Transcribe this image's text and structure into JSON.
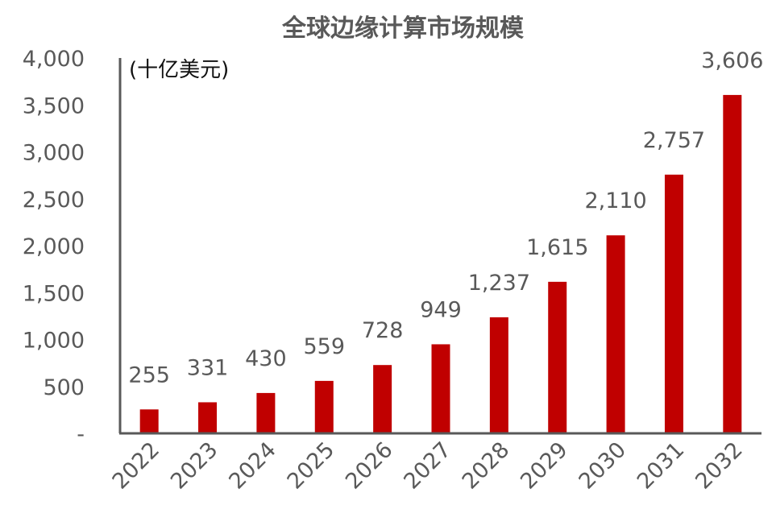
{
  "chart_data": {
    "type": "bar",
    "title": "全球边缘计算市场规模",
    "unit_label": "(十亿美元)",
    "categories": [
      "2022",
      "2023",
      "2024",
      "2025",
      "2026",
      "2027",
      "2028",
      "2029",
      "2030",
      "2031",
      "2032"
    ],
    "values": [
      255,
      331,
      430,
      559,
      728,
      949,
      1237,
      1615,
      2110,
      2757,
      3606
    ],
    "data_labels": [
      "255",
      "331",
      "430",
      "559",
      "728",
      "949",
      "1,237",
      "1,615",
      "2,110",
      "2,757",
      "3,606"
    ],
    "ylim": [
      0,
      4000
    ],
    "y_ticks": [
      0,
      500,
      1000,
      1500,
      2000,
      2500,
      3000,
      3500,
      4000
    ],
    "y_tick_labels": [
      "-",
      "500",
      "1,000",
      "1,500",
      "2,000",
      "2,500",
      "3,000",
      "3,500",
      "4,000"
    ],
    "xlabel": "",
    "ylabel": "",
    "grid": false,
    "legend": "none",
    "bar_color": "#C00000",
    "text_color": "#595959"
  }
}
